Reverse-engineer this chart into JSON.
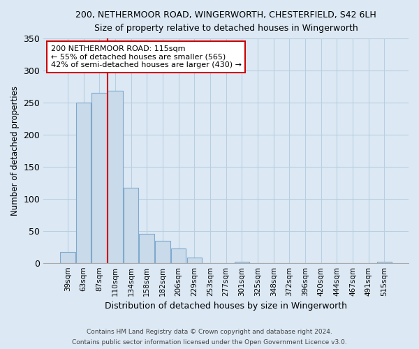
{
  "title": "200, NETHERMOOR ROAD, WINGERWORTH, CHESTERFIELD, S42 6LH",
  "subtitle": "Size of property relative to detached houses in Wingerworth",
  "xlabel": "Distribution of detached houses by size in Wingerworth",
  "ylabel": "Number of detached properties",
  "bin_labels": [
    "39sqm",
    "63sqm",
    "87sqm",
    "110sqm",
    "134sqm",
    "158sqm",
    "182sqm",
    "206sqm",
    "229sqm",
    "253sqm",
    "277sqm",
    "301sqm",
    "325sqm",
    "348sqm",
    "372sqm",
    "396sqm",
    "420sqm",
    "444sqm",
    "467sqm",
    "491sqm",
    "515sqm"
  ],
  "bar_heights": [
    17,
    250,
    265,
    268,
    117,
    45,
    34,
    22,
    8,
    0,
    0,
    2,
    0,
    0,
    0,
    0,
    0,
    0,
    0,
    0,
    2
  ],
  "bar_color": "#c9daea",
  "bar_edge_color": "#7fa9cc",
  "vline_color": "#cc0000",
  "annotation_title": "200 NETHERMOOR ROAD: 115sqm",
  "annotation_line1": "← 55% of detached houses are smaller (565)",
  "annotation_line2": "42% of semi-detached houses are larger (430) →",
  "annotation_box_color": "#ffffff",
  "annotation_box_edge": "#cc0000",
  "bg_color": "#dce9f5",
  "plot_bg_color": "#dce9f5",
  "grid_color": "#b8cfe0",
  "ylim": [
    0,
    350
  ],
  "yticks": [
    0,
    50,
    100,
    150,
    200,
    250,
    300,
    350
  ],
  "footer1": "Contains HM Land Registry data © Crown copyright and database right 2024.",
  "footer2": "Contains public sector information licensed under the Open Government Licence v3.0."
}
